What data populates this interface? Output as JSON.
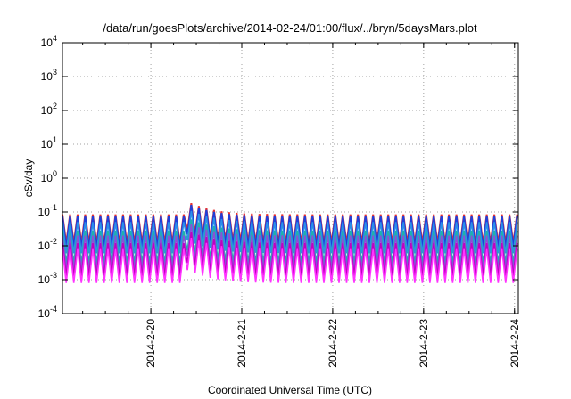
{
  "chart_data": {
    "type": "line",
    "title": "/data/run/goesPlots/archive/2014-02-24/01:00/flux/../bryn/5daysMars.plot",
    "xlabel": "Coordinated Universal Time (UTC)",
    "ylabel": "cSv/day",
    "yscale": "log",
    "ylim": [
      0.0001,
      10000
    ],
    "y_ticks": [
      {
        "base": "10",
        "exp": "-4",
        "value": 0.0001
      },
      {
        "base": "10",
        "exp": "-3",
        "value": 0.001
      },
      {
        "base": "10",
        "exp": "-2",
        "value": 0.01
      },
      {
        "base": "10",
        "exp": "-1",
        "value": 0.1
      },
      {
        "base": "10",
        "exp": "0",
        "value": 1
      },
      {
        "base": "10",
        "exp": "1",
        "value": 10
      },
      {
        "base": "10",
        "exp": "2",
        "value": 100
      },
      {
        "base": "10",
        "exp": "3",
        "value": 1000
      },
      {
        "base": "10",
        "exp": "4",
        "value": 10000
      }
    ],
    "xlim": [
      "2014-02-19T00:40",
      "2014-02-24T01:00"
    ],
    "x_ticks": [
      "2014-2-20",
      "2014-2-21",
      "2014-2-22",
      "2014-2-23",
      "2014-2-24"
    ],
    "grid": true,
    "sawtooth_period_hours": 2,
    "event": {
      "start": "2014-02-20T09:00",
      "peak_offset_factor": 2.6
    },
    "series": [
      {
        "color": "#e41a1c",
        "peak": 0.085,
        "trough": 0.012
      },
      {
        "color": "#1f3fd8",
        "peak": 0.075,
        "trough": 0.009
      },
      {
        "color": "#2c8fe8",
        "peak": 0.05,
        "trough": 0.006
      },
      {
        "color": "#20b2aa",
        "peak": 0.028,
        "trough": 0.003
      },
      {
        "color": "#8a4fd8",
        "peak": 0.02,
        "trough": 0.002
      },
      {
        "color": "#c000c0",
        "peak": 0.012,
        "trough": 0.0013
      },
      {
        "color": "#ff33ff",
        "peak": 0.008,
        "trough": 0.0008
      }
    ]
  }
}
